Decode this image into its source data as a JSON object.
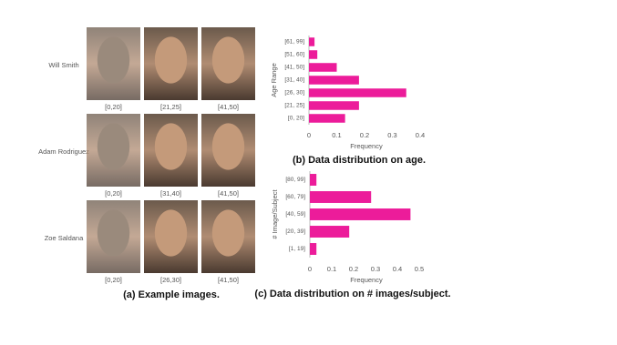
{
  "panel_a": {
    "caption": "(a) Example images.",
    "rows": [
      {
        "name": "Will  Smith",
        "ages": [
          "[0,20]",
          "[21,25]",
          "[41,50]"
        ]
      },
      {
        "name": "Adam Rodriguez",
        "ages": [
          "[0,20]",
          "[31,40]",
          "[41,50]"
        ]
      },
      {
        "name": "Zoe Saldana",
        "ages": [
          "[0,20]",
          "[26,30]",
          "[41,50]"
        ]
      }
    ]
  },
  "chart_data": [
    {
      "type": "bar",
      "orientation": "horizontal",
      "caption": "(b) Data distribution on age.",
      "y_label": "Age Range",
      "x_label": "Frequency",
      "categories": [
        "[61, 99]",
        "[51, 60]",
        "[41, 50]",
        "[31, 40]",
        "[26, 30]",
        "[21, 25]",
        "[0, 20]"
      ],
      "values": [
        0.02,
        0.03,
        0.1,
        0.18,
        0.35,
        0.18,
        0.13
      ],
      "color": "#ec1c9a",
      "xlim": [
        0,
        0.4
      ],
      "xticks": [
        0,
        0.1,
        0.2,
        0.3,
        0.4
      ]
    },
    {
      "type": "bar",
      "orientation": "horizontal",
      "caption": "(c) Data distribution on # images/subject.",
      "y_label": "# Image/Subject",
      "x_label": "Frequency",
      "categories": [
        "[80, 99]",
        "[60, 79]",
        "[40, 59]",
        "[20, 39]",
        "[1, 19]"
      ],
      "values": [
        0.03,
        0.28,
        0.46,
        0.18,
        0.03
      ],
      "color": "#ec1c9a",
      "xlim": [
        0,
        0.5
      ],
      "xticks": [
        0,
        0.1,
        0.2,
        0.3,
        0.4,
        0.5
      ]
    }
  ]
}
